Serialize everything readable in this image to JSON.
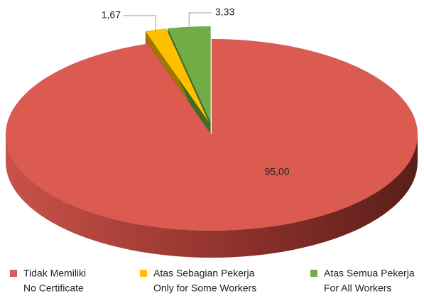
{
  "chart_data": {
    "type": "pie3d",
    "categories": [
      [
        "Tidak Memiliki",
        "No Certificate"
      ],
      [
        "Atas Sebagian Pekerja",
        "Only for Some Workers"
      ],
      [
        "Atas Semua Pekerja",
        "For All Workers"
      ]
    ],
    "values": [
      95.0,
      1.67,
      3.33
    ],
    "value_labels": [
      "95,00",
      "1,67",
      "3,33"
    ],
    "colors": [
      "#dc5b50",
      "#ffc000",
      "#71ad47"
    ],
    "legend": "bottom"
  }
}
